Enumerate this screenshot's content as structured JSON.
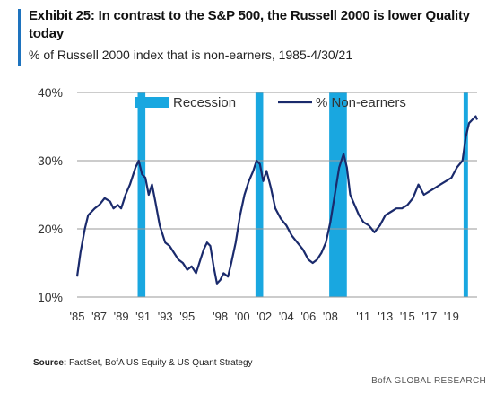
{
  "header": {
    "title": "Exhibit 25: In contrast to the S&P 500, the Russell 2000 is lower Quality today",
    "subtitle": "% of Russell 2000 index that is non-earners, 1985-4/30/21"
  },
  "footer": {
    "source_label": "Source:",
    "source_text": "FactSet, BofA US Equity & US Quant Strategy",
    "brand": "BofA GLOBAL RESEARCH"
  },
  "colors": {
    "line": "#1a2a6c",
    "recession": "#19a7e0",
    "grid": "#9a9a9a",
    "accent": "#1e73be"
  },
  "chart_data": {
    "type": "line",
    "title": "Exhibit 25: In contrast to the S&P 500, the Russell 2000 is lower Quality today",
    "subtitle": "% of Russell 2000 index that is non-earners, 1985-4/30/21",
    "xlabel": "",
    "ylabel": "",
    "xlim": [
      1985,
      2021.33
    ],
    "ylim": [
      10,
      40
    ],
    "y_ticks": [
      10,
      20,
      30,
      40
    ],
    "y_tick_labels": [
      "10%",
      "20%",
      "30%",
      "40%"
    ],
    "x_ticks": [
      1985,
      1987,
      1989,
      1991,
      1993,
      1995,
      1998,
      2000,
      2002,
      2004,
      2006,
      2008,
      2011,
      2013,
      2015,
      2017,
      2019
    ],
    "x_tick_labels": [
      "'85",
      "'87",
      "'89",
      "'91",
      "'93",
      "'95",
      "'98",
      "'00",
      "'02",
      "'04",
      "'06",
      "'08",
      "'11",
      "'13",
      "'15",
      "'17",
      "'19"
    ],
    "grid": true,
    "legend": [
      {
        "name": "Recession",
        "kind": "band"
      },
      {
        "name": "% Non-earners",
        "kind": "line"
      }
    ],
    "legend_position": "top",
    "recessions": [
      {
        "start": 1990.5,
        "end": 1991.2
      },
      {
        "start": 2001.2,
        "end": 2001.9
      },
      {
        "start": 2007.9,
        "end": 2009.5
      },
      {
        "start": 2020.1,
        "end": 2020.5
      }
    ],
    "series": [
      {
        "name": "% Non-earners",
        "x": [
          1985.0,
          1985.3,
          1985.7,
          1986.0,
          1986.3,
          1986.6,
          1987.0,
          1987.5,
          1988.0,
          1988.3,
          1988.7,
          1989.0,
          1989.4,
          1989.8,
          1990.0,
          1990.3,
          1990.6,
          1990.9,
          1991.2,
          1991.5,
          1991.8,
          1992.1,
          1992.5,
          1993.0,
          1993.4,
          1993.8,
          1994.2,
          1994.6,
          1995.0,
          1995.4,
          1995.8,
          1996.2,
          1996.5,
          1996.8,
          1997.1,
          1997.4,
          1997.7,
          1998.0,
          1998.3,
          1998.7,
          1999.0,
          1999.4,
          1999.8,
          2000.2,
          2000.6,
          2001.0,
          2001.3,
          2001.6,
          2001.9,
          2002.2,
          2002.6,
          2003.0,
          2003.5,
          2004.0,
          2004.5,
          2005.0,
          2005.5,
          2006.0,
          2006.4,
          2006.8,
          2007.2,
          2007.6,
          2008.0,
          2008.4,
          2008.8,
          2009.2,
          2009.5,
          2009.8,
          2010.2,
          2010.6,
          2011.0,
          2011.5,
          2012.0,
          2012.5,
          2013.0,
          2013.5,
          2014.0,
          2014.5,
          2015.0,
          2015.5,
          2016.0,
          2016.5,
          2017.0,
          2017.5,
          2018.0,
          2018.5,
          2019.0,
          2019.5,
          2020.0,
          2020.3,
          2020.6,
          2020.9,
          2021.2,
          2021.33
        ],
        "values": [
          13.0,
          16.5,
          20.0,
          22.0,
          22.5,
          23.0,
          23.5,
          24.5,
          24.0,
          23.0,
          23.5,
          23.0,
          25.0,
          26.5,
          27.5,
          29.0,
          30.0,
          28.0,
          27.5,
          25.0,
          26.5,
          24.0,
          20.5,
          18.0,
          17.5,
          16.5,
          15.5,
          15.0,
          14.0,
          14.5,
          13.5,
          15.5,
          17.0,
          18.0,
          17.5,
          14.5,
          12.0,
          12.5,
          13.5,
          13.0,
          15.0,
          18.0,
          22.0,
          25.0,
          27.0,
          28.5,
          30.0,
          29.5,
          27.0,
          28.5,
          26.0,
          23.0,
          21.5,
          20.5,
          19.0,
          18.0,
          17.0,
          15.5,
          15.0,
          15.5,
          16.5,
          18.0,
          21.0,
          25.0,
          29.0,
          31.0,
          29.0,
          25.0,
          23.5,
          22.0,
          21.0,
          20.5,
          19.5,
          20.5,
          22.0,
          22.5,
          23.0,
          23.0,
          23.5,
          24.5,
          26.5,
          25.0,
          25.5,
          26.0,
          26.5,
          27.0,
          27.5,
          29.0,
          30.0,
          33.5,
          35.5,
          36.0,
          36.5,
          36.0
        ]
      }
    ]
  }
}
